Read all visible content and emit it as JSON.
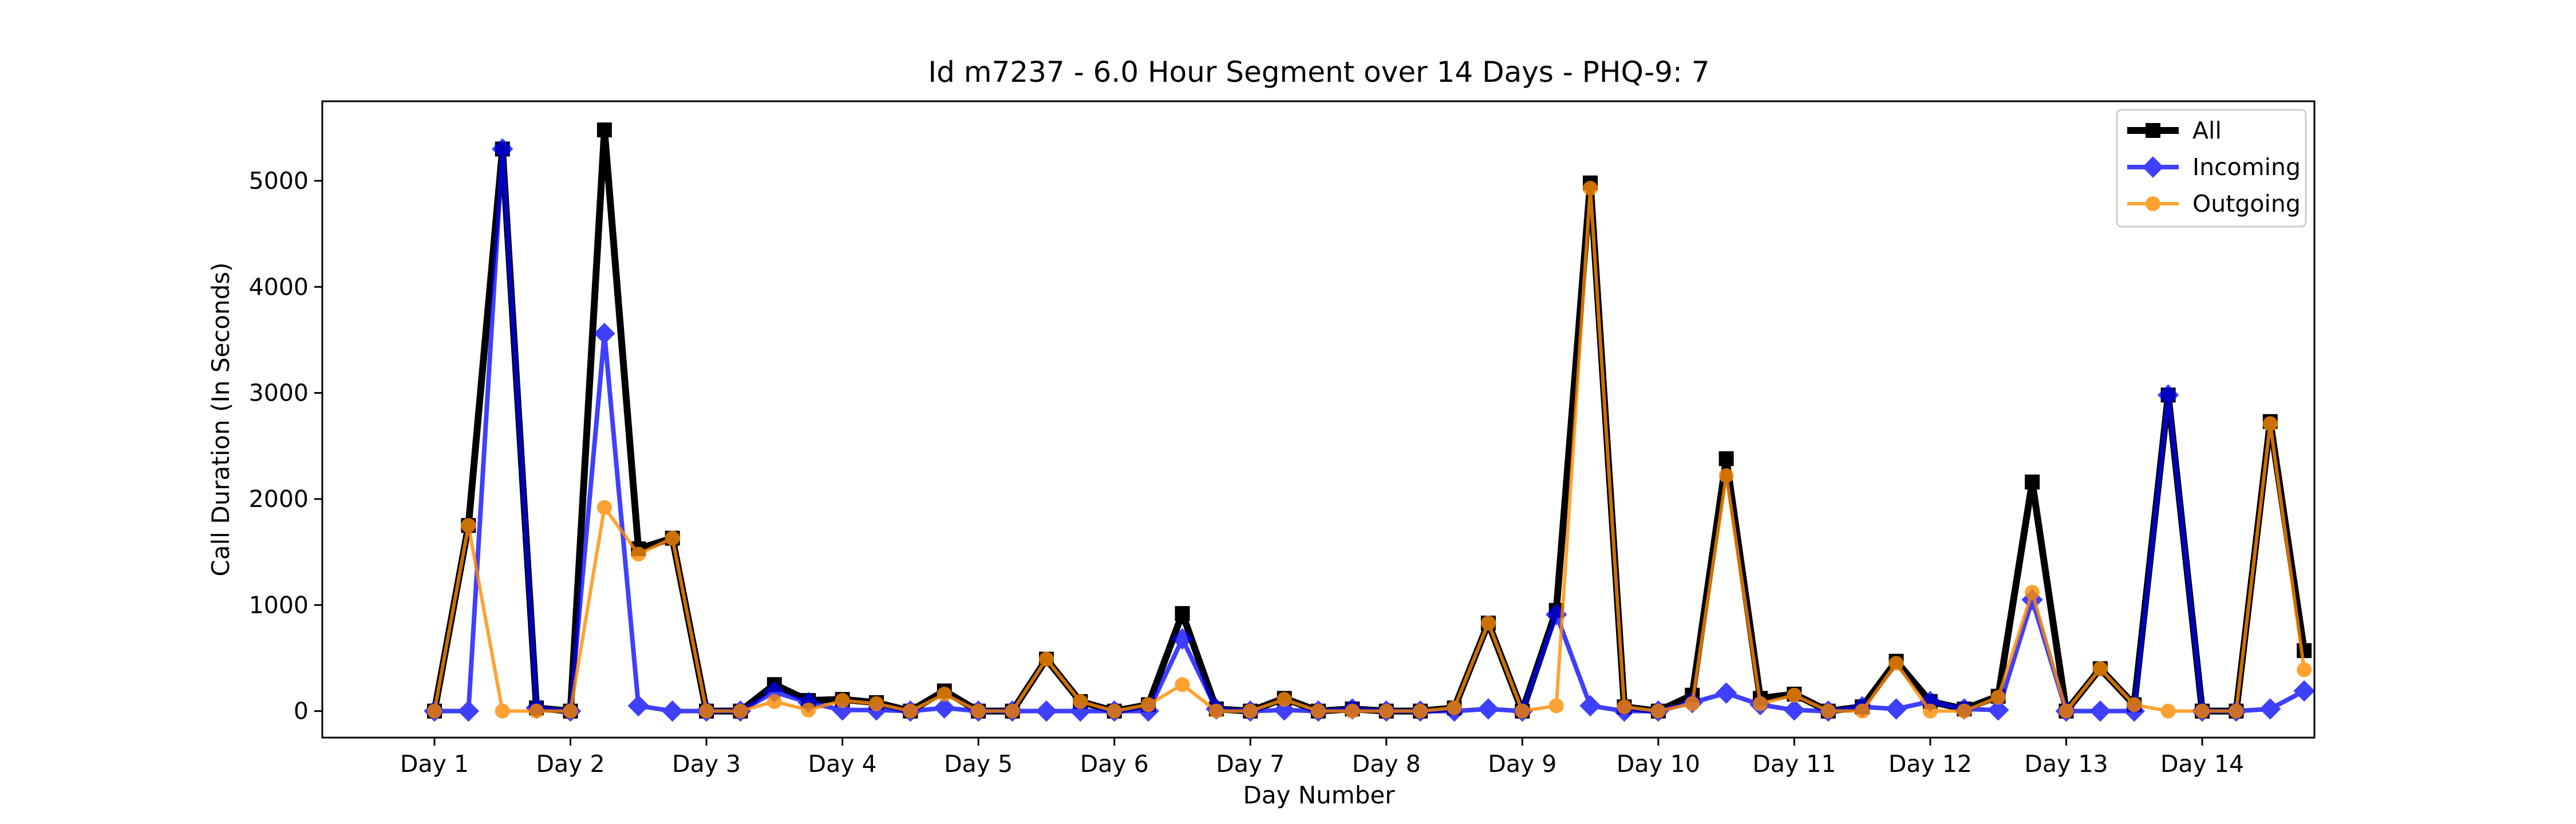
{
  "chart_data": {
    "type": "line",
    "title": "Id m7237 - 6.0 Hour Segment over 14 Days - PHQ-9: 7",
    "xlabel": "Day Number",
    "ylabel": "Call Duration (In Seconds)",
    "xlim": [
      -0.325,
      14.325
    ],
    "ylim": [
      -250,
      5750
    ],
    "x_tick_values": [
      0.5,
      1.5,
      2.5,
      3.5,
      4.5,
      5.5,
      6.5,
      7.5,
      8.5,
      9.5,
      10.5,
      11.5,
      12.5,
      13.5
    ],
    "x_tick_labels": [
      "Day 1",
      "Day 2",
      "Day 3",
      "Day 4",
      "Day 5",
      "Day 6",
      "Day 7",
      "Day 8",
      "Day 9",
      "Day 10",
      "Day 11",
      "Day 12",
      "Day 13",
      "Day 14"
    ],
    "y_tick_values": [
      0,
      1000,
      2000,
      3000,
      4000,
      5000
    ],
    "y_tick_labels": [
      "0",
      "1000",
      "2000",
      "3000",
      "4000",
      "5000"
    ],
    "grid": false,
    "legend_position": "top-right",
    "x": [
      0.5,
      0.75,
      1.0,
      1.25,
      1.5,
      1.75,
      2.0,
      2.25,
      2.5,
      2.75,
      3.0,
      3.25,
      3.5,
      3.75,
      4.0,
      4.25,
      4.5,
      4.75,
      5.0,
      5.25,
      5.5,
      5.75,
      6.0,
      6.25,
      6.5,
      6.75,
      7.0,
      7.25,
      7.5,
      7.75,
      8.0,
      8.25,
      8.5,
      8.75,
      9.0,
      9.25,
      9.5,
      9.75,
      10.0,
      10.25,
      10.5,
      10.75,
      11.0,
      11.25,
      11.5,
      11.75,
      12.0,
      12.25,
      12.5,
      12.75,
      13.0,
      13.25,
      13.5,
      13.75,
      14.0,
      14.25
    ],
    "series": [
      {
        "name": "All",
        "color": "#000000",
        "marker": "square",
        "values": [
          0,
          1750,
          5300,
          30,
          0,
          5480,
          1530,
          1630,
          0,
          0,
          250,
          100,
          110,
          80,
          0,
          190,
          0,
          0,
          490,
          90,
          0,
          60,
          920,
          20,
          0,
          120,
          0,
          20,
          0,
          0,
          30,
          830,
          0,
          950,
          4980,
          40,
          0,
          150,
          2380,
          120,
          160,
          0,
          40,
          470,
          90,
          20,
          140,
          2160,
          0,
          400,
          60,
          2980,
          0,
          0,
          2730,
          570
        ]
      },
      {
        "name": "Incoming",
        "color": "#0000ff",
        "marker": "diamond",
        "values": [
          0,
          0,
          5300,
          30,
          0,
          3560,
          50,
          0,
          0,
          0,
          180,
          80,
          10,
          10,
          0,
          30,
          0,
          0,
          0,
          0,
          0,
          0,
          680,
          20,
          0,
          10,
          0,
          20,
          0,
          0,
          0,
          20,
          0,
          910,
          50,
          0,
          0,
          80,
          170,
          60,
          10,
          0,
          40,
          20,
          90,
          20,
          10,
          1050,
          0,
          0,
          0,
          2980,
          0,
          0,
          20,
          190
        ]
      },
      {
        "name": "Outgoing",
        "color": "#ff8c00",
        "marker": "circle",
        "values": [
          0,
          1750,
          0,
          0,
          0,
          1920,
          1480,
          1630,
          0,
          0,
          90,
          10,
          100,
          70,
          0,
          160,
          0,
          0,
          490,
          90,
          0,
          60,
          250,
          0,
          0,
          110,
          0,
          0,
          0,
          0,
          30,
          830,
          0,
          50,
          4930,
          40,
          0,
          70,
          2220,
          70,
          150,
          0,
          0,
          450,
          0,
          0,
          130,
          1120,
          0,
          400,
          60,
          0,
          0,
          0,
          2710,
          390
        ]
      }
    ]
  }
}
